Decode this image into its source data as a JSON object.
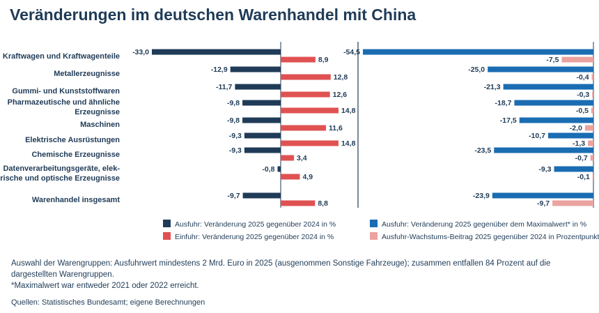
{
  "title": "Veränderungen im deutschen Warenhandel mit China",
  "chart_data": [
    {
      "type": "bar",
      "orientation": "horizontal",
      "categories": [
        "Kraftwagen und Kraftwagenteile",
        "Metallerzeugnisse",
        "Gummi- und Kunststoffwaren",
        "Pharmazeutische und ähnliche Erzeugnisse",
        "Maschinen",
        "Elektrische Ausrüstungen",
        "Chemische Erzeugnisse",
        "Datenverarbeitungsgeräte, elektrische und optische Erzeugnisse",
        "Warenhandel insgesamt"
      ],
      "category_display": [
        [
          "Kraftwagen und Kraftwagenteile"
        ],
        [
          "Metallerzeugnisse"
        ],
        [
          "Gummi- und Kunststoffwaren"
        ],
        [
          "Pharmazeutische und ähnliche",
          "Erzeugnisse"
        ],
        [
          "Maschinen"
        ],
        [
          "Elektrische Ausrüstungen"
        ],
        [
          "Chemische Erzeugnisse"
        ],
        [
          "Datenverarbeitungsgeräte, elek-",
          "trische und optische Erzeugnisse"
        ],
        [
          "Warenhandel insgesamt"
        ]
      ],
      "series": [
        {
          "name": "Ausfuhr: Veränderung 2025 gegenüber 2024 in %",
          "color": "#1f3b57",
          "values": [
            -33.0,
            -12.9,
            -11.7,
            -9.8,
            -9.8,
            -9.3,
            -9.3,
            -0.8,
            -9.7
          ],
          "labels": [
            "-33,0",
            "-12,9",
            "-11,7",
            "-9,8",
            "-9,8",
            "-9,3",
            "-9,3",
            "-0,8",
            "-9,7"
          ]
        },
        {
          "name": "Einfuhr: Veränderung 2025 gegenüber 2024 in %",
          "color": "#e05252",
          "values": [
            8.9,
            12.8,
            12.6,
            14.8,
            11.6,
            14.8,
            3.4,
            4.9,
            8.8
          ],
          "labels": [
            "8,9",
            "12,8",
            "12,6",
            "14,8",
            "11,6",
            "14,8",
            "3,4",
            "4,9",
            "8,8"
          ]
        }
      ]
    },
    {
      "type": "bar",
      "orientation": "horizontal",
      "series": [
        {
          "name": "Ausfuhr: Veränderung 2025 gegenüber dem Maximalwert* in %",
          "color": "#1a6db3",
          "values": [
            -54.5,
            -25.0,
            -21.3,
            -18.7,
            -17.5,
            -10.7,
            -23.5,
            -9.3,
            -23.9
          ],
          "labels": [
            "-54,5",
            "-25,0",
            "-21,3",
            "-18,7",
            "-17,5",
            "-10,7",
            "-23,5",
            "-9,3",
            "-23,9"
          ]
        },
        {
          "name": "Ausfuhr-Wachstums-Beitrag 2025 gegenüber 2024 in Prozentpunkten",
          "color": "#eba39f",
          "values": [
            -7.5,
            -0.4,
            -0.3,
            -0.5,
            -2.0,
            -1.3,
            -0.7,
            -0.1,
            -9.7
          ],
          "labels": [
            "-7,5",
            "-0,4",
            "-0,3",
            "-0,5",
            "-2,0",
            "-1,3",
            "-0,7",
            "-0,1",
            "-9,7"
          ]
        }
      ]
    }
  ],
  "notes": [
    "Auswahl der Warengruppen: Ausfuhrwert mindestens 2 Mrd. Euro in 2025 (ausgenommen Sonstige Fahrzeuge); zusammen entfallen 84 Prozent auf die dargestellten Warengruppen.",
    "*Maximalwert war entweder 2021 oder 2022 erreicht."
  ],
  "source": "Quellen: Statistisches Bundesamt; eigene Berechnungen"
}
